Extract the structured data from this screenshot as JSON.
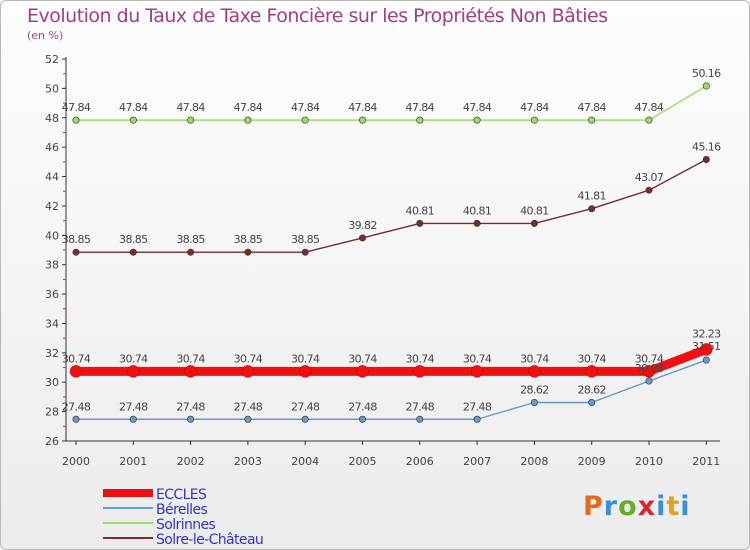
{
  "header": {
    "title": "Evolution du Taux de Taxe Foncière sur les Propriétés Non Bâties",
    "subtitle": "(en %)"
  },
  "logo": {
    "p": "P",
    "r": "r",
    "o": "o",
    "x": "x",
    "i": "i",
    "t": "t",
    "i2": "i"
  },
  "chart_data": {
    "type": "line",
    "title": "Evolution du Taux de Taxe Foncière sur les Propriétés Non Bâties",
    "ylabel": "(en %)",
    "xlabel": "",
    "ylim": [
      26,
      52
    ],
    "yticks": [
      "26",
      "28",
      "30",
      "32",
      "34",
      "36",
      "38",
      "40",
      "42",
      "44",
      "46",
      "48",
      "50",
      "52"
    ],
    "categories": [
      "2000",
      "2001",
      "2002",
      "2003",
      "2004",
      "2005",
      "2006",
      "2007",
      "2008",
      "2009",
      "2010",
      "2011"
    ],
    "grid": false,
    "legend": "bottom-left",
    "series": [
      {
        "name": "ECCLES",
        "color": "#ee1111",
        "values": [
          30.74,
          30.74,
          30.74,
          30.74,
          30.74,
          30.74,
          30.74,
          30.74,
          30.74,
          30.74,
          30.74,
          32.23
        ],
        "labels": [
          "30.74",
          "30.74",
          "30.74",
          "30.74",
          "30.74",
          "30.74",
          "30.74",
          "30.74",
          "30.74",
          "30.74",
          "30.74",
          "32.23"
        ]
      },
      {
        "name": "Bérelles",
        "color": "#6699cc",
        "values": [
          27.48,
          27.48,
          27.48,
          27.48,
          27.48,
          27.48,
          27.48,
          27.48,
          28.62,
          28.62,
          30.08,
          31.51
        ],
        "labels": [
          "27.48",
          "27.48",
          "27.48",
          "27.48",
          "27.48",
          "27.48",
          "27.48",
          "27.48",
          "28.62",
          "28.62",
          "30.08",
          "31.51"
        ]
      },
      {
        "name": "Solrinnes",
        "color": "#99dd66",
        "values": [
          47.84,
          47.84,
          47.84,
          47.84,
          47.84,
          47.84,
          47.84,
          47.84,
          47.84,
          47.84,
          47.84,
          50.16
        ],
        "labels": [
          "47.84",
          "47.84",
          "47.84",
          "47.84",
          "47.84",
          "47.84",
          "47.84",
          "47.84",
          "47.84",
          "47.84",
          "47.84",
          "50.16"
        ]
      },
      {
        "name": "Solre-le-Château",
        "color": "#7a2c2c",
        "values": [
          38.85,
          38.85,
          38.85,
          38.85,
          38.85,
          39.82,
          40.81,
          40.81,
          40.81,
          41.81,
          43.07,
          45.16
        ],
        "labels": [
          "38.85",
          "38.85",
          "38.85",
          "38.85",
          "38.85",
          "39.82",
          "40.81",
          "40.81",
          "40.81",
          "41.81",
          "43.07",
          "45.16"
        ]
      }
    ]
  }
}
